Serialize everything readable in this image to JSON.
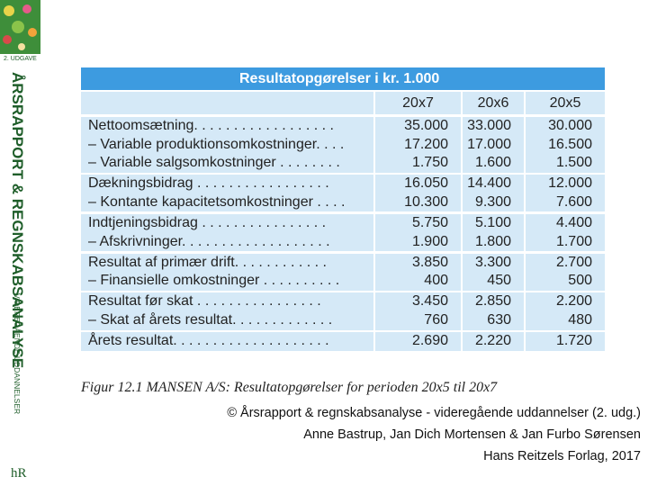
{
  "sidebar": {
    "edition": "2. UDGAVE",
    "title": "ÅRSRAPPORT & REGNSKABSANALYSE",
    "subtitle": "VIDEREGÅENDE UDDANNELSER",
    "logo": "hR"
  },
  "table": {
    "title": "Resultatopgørelser i kr. 1.000",
    "columns": [
      "20x7",
      "20x6",
      "20x5"
    ],
    "groups": [
      [
        [
          "Nettoomsætning. . . . . . . . . . . . . . . . . .",
          "35.000",
          "33.000",
          "30.000"
        ],
        [
          "– Variable produktionsomkostninger. . . .",
          "17.200",
          "17.000",
          "16.500"
        ],
        [
          "– Variable salgsomkostninger . . . . . . . .",
          "1.750",
          "1.600",
          "1.500"
        ]
      ],
      [
        [
          "Dækningsbidrag . . . . . . . . . . . . . . . . .",
          "16.050",
          "14.400",
          "12.000"
        ],
        [
          "– Kontante kapacitetsomkostninger . . . .",
          "10.300",
          "9.300",
          "7.600"
        ]
      ],
      [
        [
          "Indtjeningsbidrag . . . . . . . . . . . . . . . .",
          "5.750",
          "5.100",
          "4.400"
        ],
        [
          "– Afskrivninger. . . . . . . . . . . . . . . . . . .",
          "1.900",
          "1.800",
          "1.700"
        ]
      ],
      [
        [
          "Resultat af primær drift. . . . . . . . . . . .",
          "3.850",
          "3.300",
          "2.700"
        ],
        [
          "– Finansielle omkostninger . . . . . . . . . .",
          "400",
          "450",
          "500"
        ]
      ],
      [
        [
          "Resultat før skat . . . . . . . . . . . . . . . .",
          "3.450",
          "2.850",
          "2.200"
        ],
        [
          "– Skat af årets resultat. . . . . . . . . . . . .",
          "760",
          "630",
          "480"
        ]
      ],
      [
        [
          "Årets resultat. . . . . . . . . . . . . . . . . . . .",
          "2.690",
          "2.220",
          "1.720"
        ]
      ]
    ]
  },
  "caption": "Figur 12.1 MANSEN A/S: Resultatopgørelser for perioden 20x5 til 20x7",
  "credits": [
    "© Årsrapport & regnskabsanalyse - videregående uddannelser (2. udg.)",
    "Anne Bastrup, Jan Dich Mortensen & Jan Furbo Sørensen",
    "Hans Reitzels Forlag, 2017"
  ]
}
